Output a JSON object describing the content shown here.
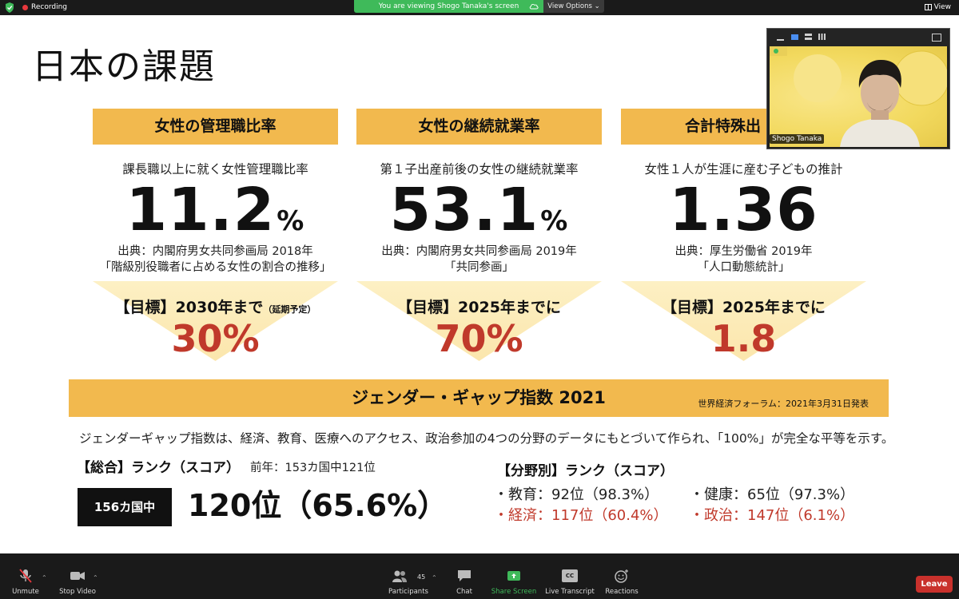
{
  "top_bar": {
    "recording_label": "Recording",
    "viewing_banner": "You are viewing Shogo Tanaka's screen",
    "view_options_label": "View Options",
    "view_label": "View"
  },
  "slide": {
    "title": "日本の課題",
    "panels": [
      {
        "header": "女性の管理職比率",
        "description": "課長職以上に就く女性管理職比率",
        "big_value": "11.2",
        "big_unit": "%",
        "source_line1": "出典：内閣府男女共同参画局 2018年",
        "source_line2": "「階級別役職者に占める女性の割合の推移」",
        "target_label": "【目標】2030年まで",
        "target_note": "（延期予定）",
        "goal_value": "30%"
      },
      {
        "header": "女性の継続就業率",
        "description": "第１子出産前後の女性の継続就業率",
        "big_value": "53.1",
        "big_unit": "%",
        "source_line1": "出典：内閣府男女共同参画局 2019年",
        "source_line2": "「共同参画」",
        "target_label": "【目標】2025年までに",
        "target_note": "",
        "goal_value": "70%"
      },
      {
        "header": "合計特殊出",
        "description": "女性１人が生涯に産む子どもの推計",
        "big_value": "1.36",
        "big_unit": "",
        "source_line1": "出典：厚生労働省 2019年",
        "source_line2": "「人口動態統計」",
        "target_label": "【目標】2025年までに",
        "target_note": "",
        "goal_value": "1.8"
      }
    ],
    "gender_gap": {
      "title": "ジェンダー・ギャップ指数 2021",
      "source": "世界経済フォーラム：2021年3月31日発表",
      "description": "ジェンダーギャップ指数は、経済、教育、医療へのアクセス、政治参加の4つの分野のデータにもとづいて作られ、「100%」が完全な平等を示す。",
      "overall_label": "【総合】ランク（スコア）",
      "overall_prev": "前年：153カ国中121位",
      "overall_badge": "156カ国中",
      "overall_value": "120位（65.6%）",
      "field_label": "【分野別】ランク（スコア）",
      "fields": [
        {
          "text": "・教育：92位（98.3%）",
          "color": "black"
        },
        {
          "text": "・健康：65位（97.3%）",
          "color": "black"
        },
        {
          "text": "・経済：117位（60.4%）",
          "color": "red"
        },
        {
          "text": "・政治：147位（6.1%）",
          "color": "red"
        }
      ]
    }
  },
  "video": {
    "participant_name": "Shogo Tanaka"
  },
  "toolbar": {
    "unmute": "Unmute",
    "stop_video": "Stop Video",
    "participants": "Participants",
    "participants_count": "45",
    "chat": "Chat",
    "share_screen": "Share Screen",
    "live_transcript": "Live Transcript",
    "reactions": "Reactions",
    "leave": "Leave",
    "cc_label": "CC"
  },
  "colors": {
    "accent_orange": "#f2b94e",
    "goal_red": "#c0392b",
    "share_green": "#3fba5a",
    "leave_red": "#c9312c"
  }
}
